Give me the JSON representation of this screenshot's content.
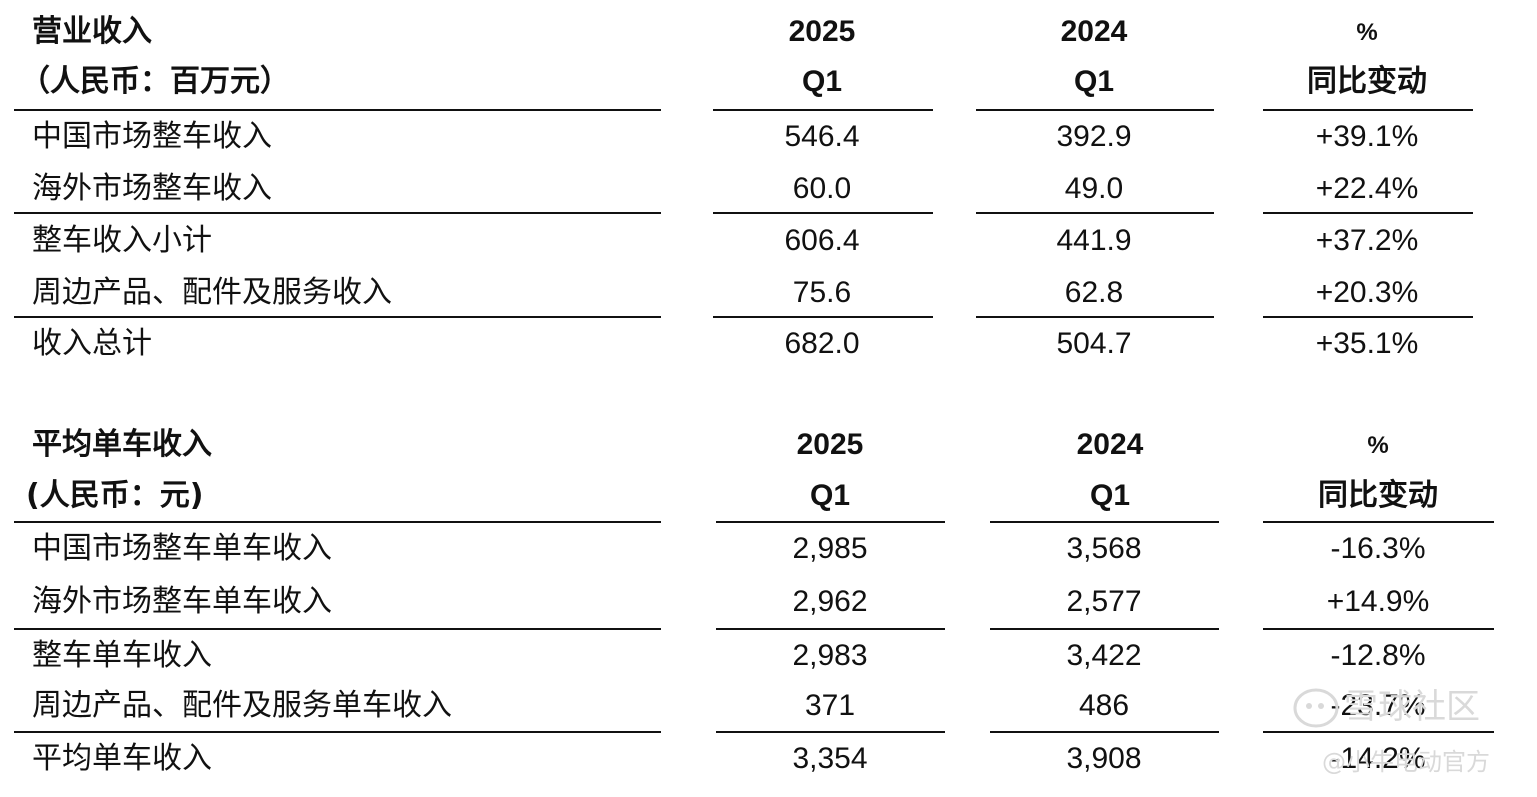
{
  "table1": {
    "title": "营业收入",
    "unit": "（人民币：百万元）",
    "col1": {
      "year": "2025",
      "quarter": "Q1"
    },
    "col2": {
      "year": "2024",
      "quarter": "Q1"
    },
    "col3": {
      "top": "%",
      "bottom": "同比变动"
    },
    "rows": [
      {
        "label": "中国市场整车收入",
        "v1": "546.4",
        "v2": "392.9",
        "v3": "+39.1%"
      },
      {
        "label": "海外市场整车收入",
        "v1": "60.0",
        "v2": "49.0",
        "v3": "+22.4%"
      },
      {
        "label": "整车收入小计",
        "v1": "606.4",
        "v2": "441.9",
        "v3": "+37.2%"
      },
      {
        "label": "周边产品、配件及服务收入",
        "v1": "75.6",
        "v2": "62.8",
        "v3": "+20.3%"
      },
      {
        "label": "收入总计",
        "v1": "682.0",
        "v2": "504.7",
        "v3": "+35.1%"
      }
    ]
  },
  "table2": {
    "title": "平均单车收入",
    "unit": "(人民币：元)",
    "col1": {
      "year": "2025",
      "quarter": "Q1"
    },
    "col2": {
      "year": "2024",
      "quarter": "Q1"
    },
    "col3": {
      "top": "%",
      "bottom": "同比变动"
    },
    "rows": [
      {
        "label": "中国市场整车单车收入",
        "v1": "2,985",
        "v2": "3,568",
        "v3": "-16.3%"
      },
      {
        "label": "海外市场整车单车收入",
        "v1": "2,962",
        "v2": "2,577",
        "v3": "+14.9%"
      },
      {
        "label": "整车单车收入",
        "v1": "2,983",
        "v2": "3,422",
        "v3": "-12.8%"
      },
      {
        "label": "周边产品、配件及服务单车收入",
        "v1": "371",
        "v2": "486",
        "v3": "-23.7%"
      },
      {
        "label": "平均单车收入",
        "v1": "3,354",
        "v2": "3,908",
        "v3": "-14.2%"
      }
    ]
  },
  "watermark": {
    "site": "雪球社区",
    "author": "@小牛电动官方"
  }
}
